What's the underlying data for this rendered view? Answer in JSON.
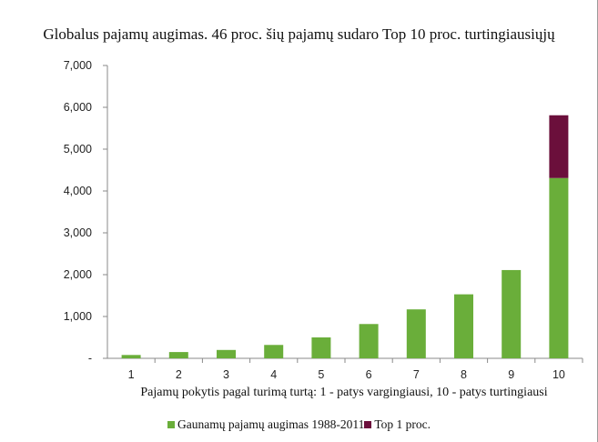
{
  "chart_data": {
    "type": "bar",
    "stacked": true,
    "title": "Globalus pajamų augimas. 46 proc. šių pajamų sudaro Top 10 proc. turtingiausiųjų",
    "xlabel": "Pajamų pokytis pagal turimą turtą: 1 - patys vargingiausi, 10 - patys turtingiausi",
    "ylabel": "",
    "categories": [
      "1",
      "2",
      "3",
      "4",
      "5",
      "6",
      "7",
      "8",
      "9",
      "10"
    ],
    "ylim": [
      0,
      7000
    ],
    "yticks": [
      0,
      1000,
      2000,
      3000,
      4000,
      5000,
      6000,
      7000
    ],
    "ytick_labels": [
      "-",
      "1,000",
      "2,000",
      "3,000",
      "4,000",
      "5,000",
      "6,000",
      "7,000"
    ],
    "grid": false,
    "legend_position": "bottom",
    "series": [
      {
        "name": "Gaunamų pajamų augimas 1988-2011",
        "color": "#6aae3a",
        "values": [
          80,
          150,
          200,
          320,
          500,
          820,
          1170,
          1530,
          2110,
          4310
        ]
      },
      {
        "name": "Top 1 proc.",
        "color": "#6b0f3b",
        "values": [
          0,
          0,
          0,
          0,
          0,
          0,
          0,
          0,
          0,
          1500
        ]
      }
    ]
  }
}
